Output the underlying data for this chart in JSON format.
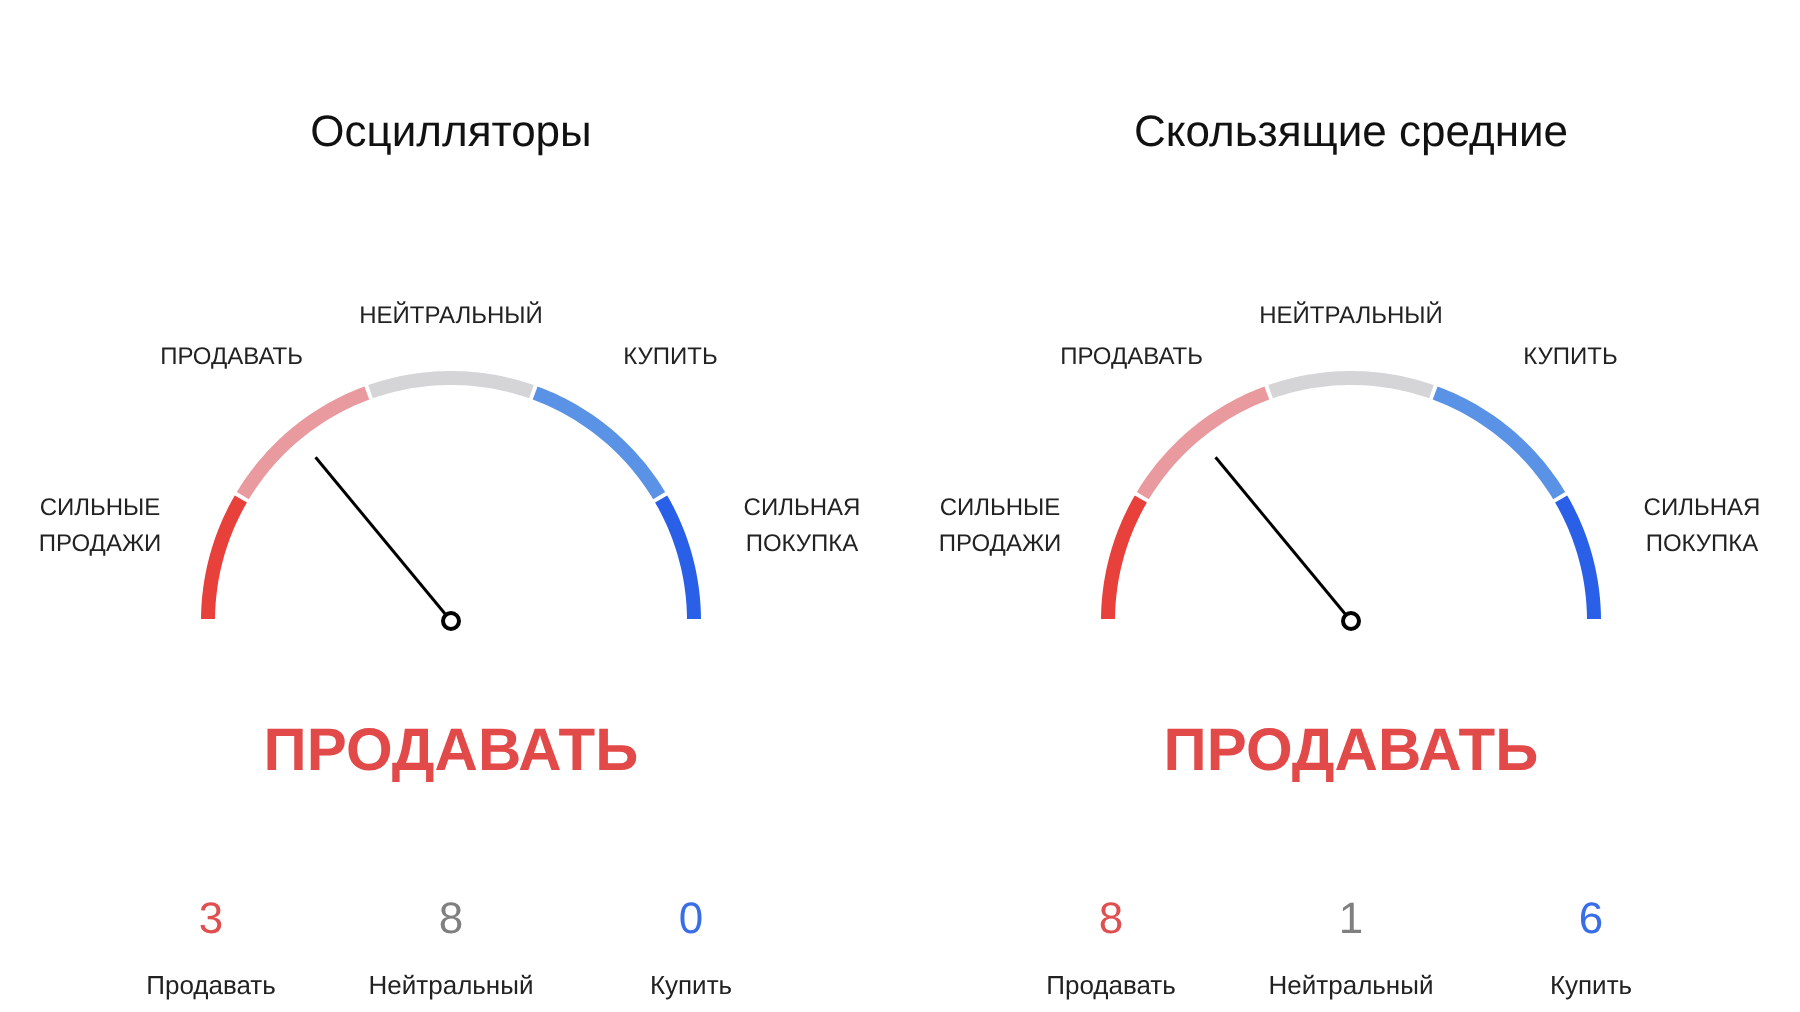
{
  "chart_data": [
    {
      "type": "donut",
      "title": "Осцилляторы",
      "subtitle": "ПРОДАВАТЬ",
      "categories": [
        "СИЛЬНЫЕ\nПРОДАЖИ",
        "ПРОДАВАТЬ",
        "НЕЙТРАЛЬНЫЙ",
        "КУПИТЬ",
        "СИЛЬНАЯ\nПОКУПКА"
      ],
      "values": [
        17,
        22,
        22,
        22,
        17
      ],
      "colors": [
        "#e8403a",
        "#e89a9e",
        "#d5d5d8",
        "#5a93e6",
        "#2a5fe8"
      ],
      "needle": "ПРОДАВАТЬ",
      "annotations": [
        "3",
        "Продавать",
        "8",
        "Нейтральный",
        "0",
        "Купить"
      ]
    },
    {
      "type": "donut",
      "title": "Скользящие средние",
      "subtitle": "ПРОДАВАТЬ",
      "categories": [
        "СИЛЬНЫЕ\nПРОДАЖИ",
        "ПРОДАВАТЬ",
        "НЕЙТРАЛЬНЫЙ",
        "КУПИТЬ",
        "СИЛЬНАЯ\nПОКУПКА"
      ],
      "values": [
        17,
        22,
        22,
        22,
        17
      ],
      "colors": [
        "#e8403a",
        "#e89a9e",
        "#d5d5d8",
        "#5a93e6",
        "#2a5fe8"
      ],
      "needle": "ПРОДАВАТЬ",
      "annotations": [
        "8",
        "Продавать",
        "1",
        "Нейтральный",
        "6",
        "Купить"
      ]
    }
  ]
}
